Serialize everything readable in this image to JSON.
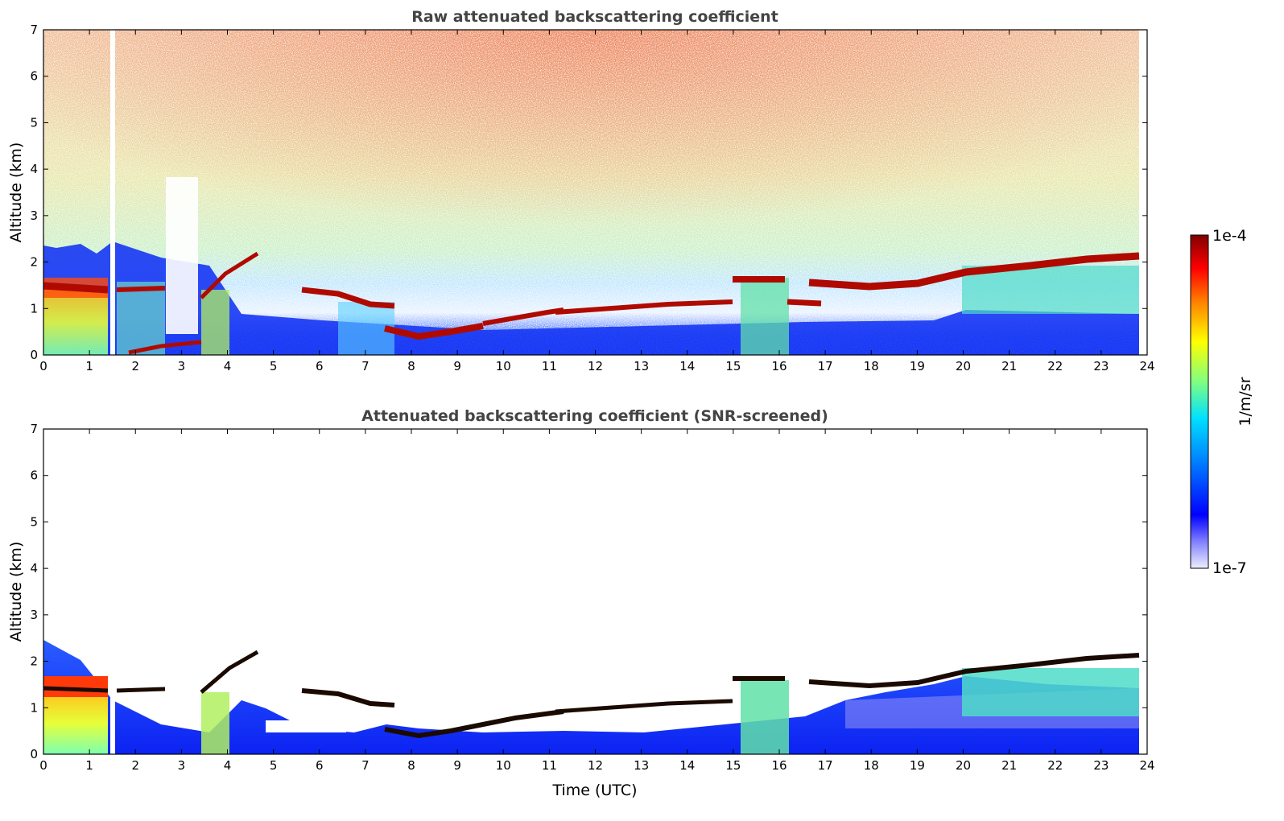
{
  "chart_data": [
    {
      "type": "heatmap",
      "title": "Raw attenuated backscattering coefficient",
      "ylabel": "Altitude (km)",
      "xlabel": "",
      "xlim": [
        0,
        24
      ],
      "ylim": [
        0,
        7
      ],
      "xticks": [
        "0",
        "1",
        "2",
        "3",
        "4",
        "5",
        "6",
        "7",
        "8",
        "9",
        "10",
        "11",
        "12",
        "13",
        "14",
        "15",
        "16",
        "17",
        "18",
        "19",
        "20",
        "21",
        "22",
        "23",
        "24"
      ],
      "yticks": [
        "0",
        "1",
        "2",
        "3",
        "4",
        "5",
        "6",
        "7"
      ],
      "grid": false,
      "cloud_layers": [
        {
          "x": [
            0,
            1.4
          ],
          "y": [
            1.45,
            1.4
          ]
        },
        {
          "x": [
            1.6,
            2.6
          ],
          "y": [
            1.4,
            1.4
          ]
        },
        {
          "x": [
            1.7,
            3.5
          ],
          "y": [
            0.05,
            0.3
          ]
        },
        {
          "x": [
            3.5,
            4.6
          ],
          "y": [
            1.3,
            2.1
          ]
        },
        {
          "x": [
            5.8,
            7.7
          ],
          "y": [
            1.4,
            1.1
          ]
        },
        {
          "x": [
            7.8,
            9.5
          ],
          "y": [
            0.4,
            0.5
          ]
        },
        {
          "x": [
            9.5,
            11.5
          ],
          "y": [
            0.6,
            0.9
          ]
        },
        {
          "x": [
            11.5,
            15.2
          ],
          "y": [
            0.9,
            1.1
          ]
        },
        {
          "x": [
            15.0,
            16.5
          ],
          "y": [
            1.6,
            1.6
          ]
        },
        {
          "x": [
            16.3,
            17.0
          ],
          "y": [
            1.1,
            1.1
          ]
        },
        {
          "x": [
            17.0,
            23.8
          ],
          "y": [
            1.55,
            2.05
          ]
        }
      ]
    },
    {
      "type": "heatmap",
      "title": "Attenuated backscattering coefficient (SNR-screened)",
      "ylabel": "Altitude (km)",
      "xlabel": "Time (UTC)",
      "xlim": [
        0,
        24
      ],
      "ylim": [
        0,
        7
      ],
      "xticks": [
        "0",
        "1",
        "2",
        "3",
        "4",
        "5",
        "6",
        "7",
        "8",
        "9",
        "10",
        "11",
        "12",
        "13",
        "14",
        "15",
        "16",
        "17",
        "18",
        "19",
        "20",
        "21",
        "22",
        "23",
        "24"
      ],
      "yticks": [
        "0",
        "1",
        "2",
        "3",
        "4",
        "5",
        "6",
        "7"
      ],
      "grid": false
    }
  ],
  "colorbar": {
    "label": "1/m/sr",
    "max_label": "1e-4",
    "min_label": "1e-7",
    "scale": "log",
    "colormap": "jet",
    "colors": [
      "#e8e8ff",
      "#0000ff",
      "#0080ff",
      "#00e0ff",
      "#80ff80",
      "#ffff00",
      "#ff8000",
      "#ff0000",
      "#800000"
    ]
  }
}
